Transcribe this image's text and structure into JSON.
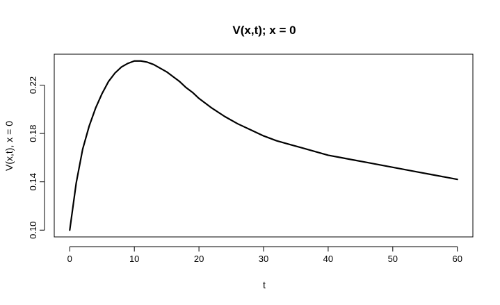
{
  "chart_data": {
    "type": "line",
    "title": "V(x,t); x = 0",
    "xlabel": "t",
    "ylabel": "V(x,t), x = 0",
    "xlim": [
      -2.4,
      62.4
    ],
    "ylim": [
      0.0944,
      0.2456
    ],
    "x_ticks": [
      0,
      10,
      20,
      30,
      40,
      50,
      60
    ],
    "y_ticks": [
      0.1,
      0.14,
      0.18,
      0.22
    ],
    "x_tick_labels": [
      "0",
      "10",
      "20",
      "30",
      "40",
      "50",
      "60"
    ],
    "y_tick_labels": [
      "0.10",
      "0.14",
      "0.18",
      "0.22"
    ],
    "grid": false,
    "series": [
      {
        "x": [
          0,
          1,
          2,
          3,
          4,
          5,
          6,
          7,
          8,
          9,
          10,
          11,
          12,
          13,
          14,
          15,
          16,
          17,
          18,
          19,
          20,
          22,
          24,
          26,
          28,
          30,
          32,
          34,
          36,
          38,
          40,
          42,
          44,
          46,
          48,
          50,
          52,
          54,
          56,
          58,
          60
        ],
        "y": [
          0.1,
          0.139,
          0.167,
          0.186,
          0.201,
          0.213,
          0.223,
          0.23,
          0.235,
          0.238,
          0.24,
          0.24,
          0.239,
          0.237,
          0.234,
          0.231,
          0.227,
          0.223,
          0.218,
          0.214,
          0.209,
          0.201,
          0.194,
          0.188,
          0.183,
          0.178,
          0.174,
          0.171,
          0.168,
          0.165,
          0.162,
          0.16,
          0.158,
          0.156,
          0.154,
          0.152,
          0.15,
          0.148,
          0.146,
          0.144,
          0.142
        ],
        "color": "#000000"
      }
    ]
  }
}
